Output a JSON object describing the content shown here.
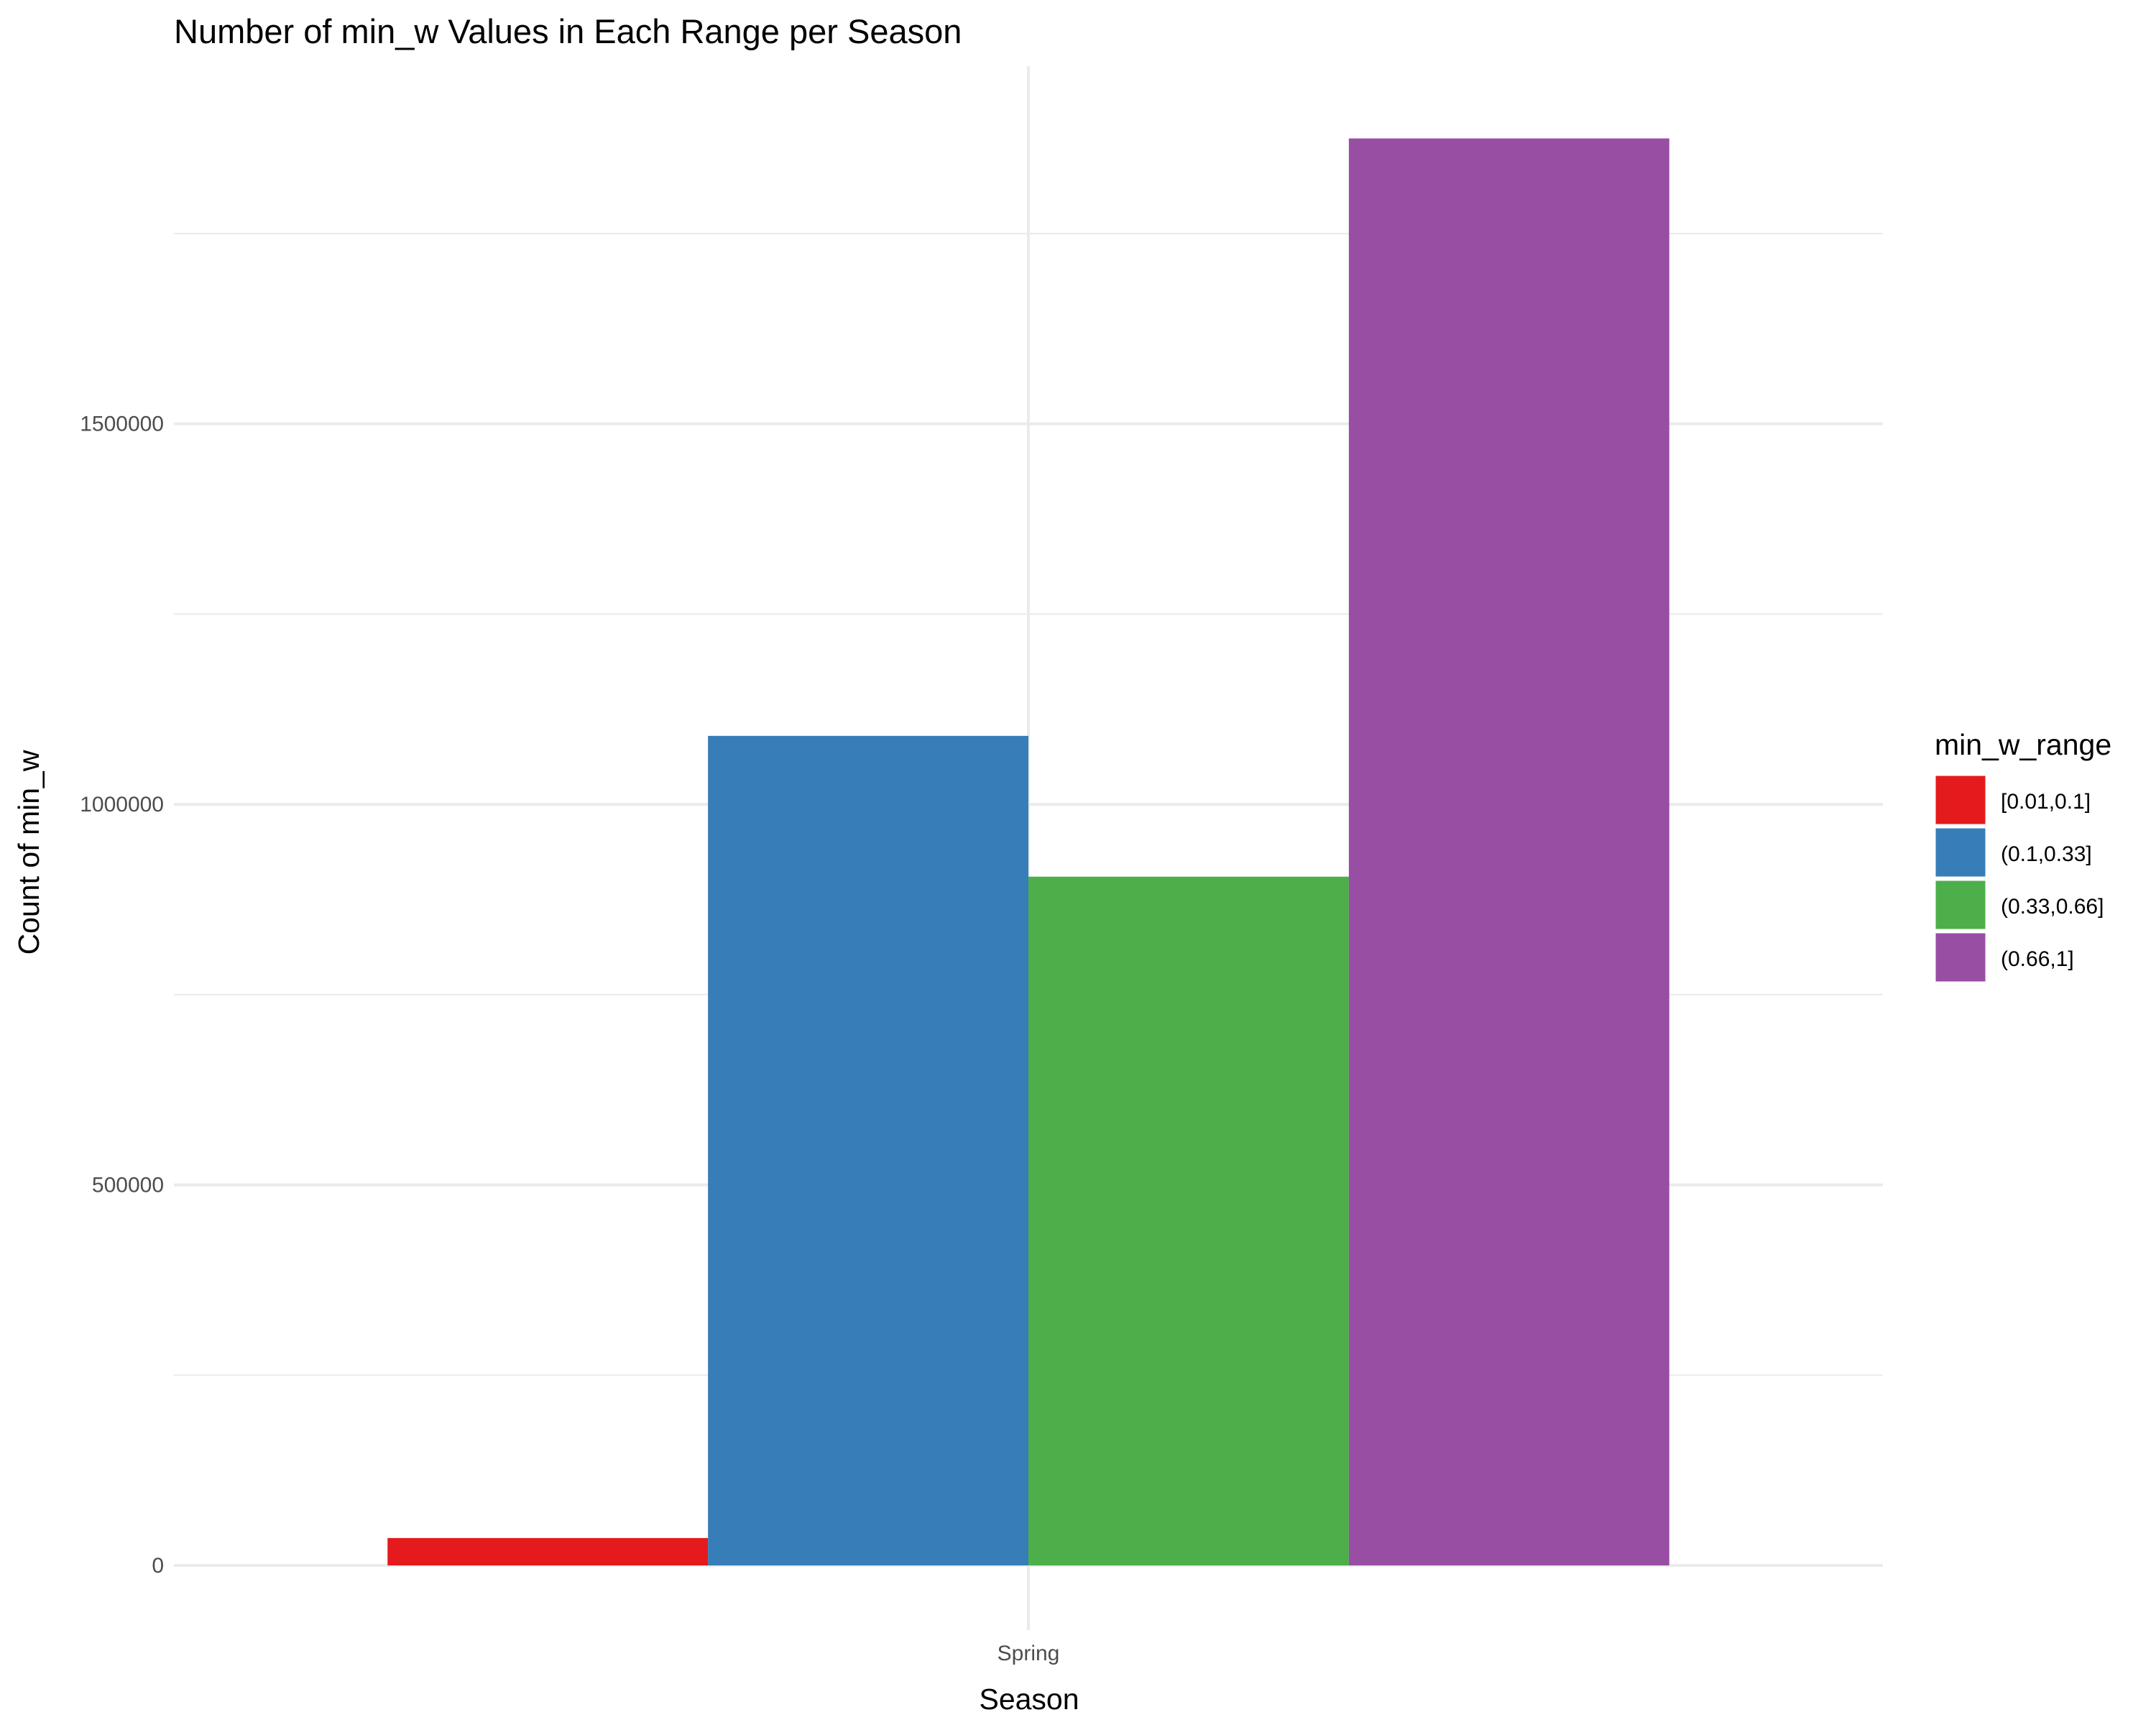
{
  "chart_data": {
    "type": "bar",
    "title": "Number of min_w Values in Each Range per Season",
    "xlabel": "Season",
    "ylabel": "Count of min_w",
    "categories": [
      "Spring"
    ],
    "series": [
      {
        "name": "[0.01,0.1]",
        "values": [
          36000
        ],
        "color": "#e41a1c"
      },
      {
        "name": "(0.1,0.33]",
        "values": [
          1090000
        ],
        "color": "#377eb8"
      },
      {
        "name": "(0.33,0.66]",
        "values": [
          905000
        ],
        "color": "#4daf4a"
      },
      {
        "name": "(0.66,1]",
        "values": [
          1875000
        ],
        "color": "#984ea3"
      }
    ],
    "ylim": [
      -85000,
      1970000
    ],
    "yticks": [
      0,
      500000,
      1000000,
      1500000
    ],
    "ytick_labels": [
      "0",
      "500000",
      "1000000",
      "1500000"
    ],
    "grid": true,
    "legend": {
      "title": "min_w_range",
      "position": "right"
    }
  }
}
